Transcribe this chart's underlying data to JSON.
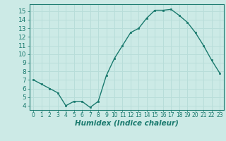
{
  "x": [
    0,
    1,
    2,
    3,
    4,
    5,
    6,
    7,
    8,
    9,
    10,
    11,
    12,
    13,
    14,
    15,
    16,
    17,
    18,
    19,
    20,
    21,
    22,
    23
  ],
  "y": [
    7.0,
    6.5,
    6.0,
    5.5,
    4.0,
    4.5,
    4.5,
    3.8,
    4.5,
    7.5,
    9.5,
    11.0,
    12.5,
    13.0,
    14.2,
    15.1,
    15.1,
    15.2,
    14.5,
    13.7,
    12.5,
    11.0,
    9.3,
    7.8
  ],
  "line_color": "#1a7a6e",
  "marker": "s",
  "marker_size": 2.0,
  "linewidth": 1.0,
  "xlabel": "Humidex (Indice chaleur)",
  "xlabel_fontsize": 7.5,
  "xlabel_style": "italic",
  "xlim": [
    -0.5,
    23.5
  ],
  "ylim": [
    3.5,
    15.8
  ],
  "yticks": [
    4,
    5,
    6,
    7,
    8,
    9,
    10,
    11,
    12,
    13,
    14,
    15
  ],
  "xticks": [
    0,
    1,
    2,
    3,
    4,
    5,
    6,
    7,
    8,
    9,
    10,
    11,
    12,
    13,
    14,
    15,
    16,
    17,
    18,
    19,
    20,
    21,
    22,
    23
  ],
  "background_color": "#cceae6",
  "grid_color": "#b8ddd9",
  "ytick_fontsize": 6.5,
  "xtick_fontsize": 5.5
}
